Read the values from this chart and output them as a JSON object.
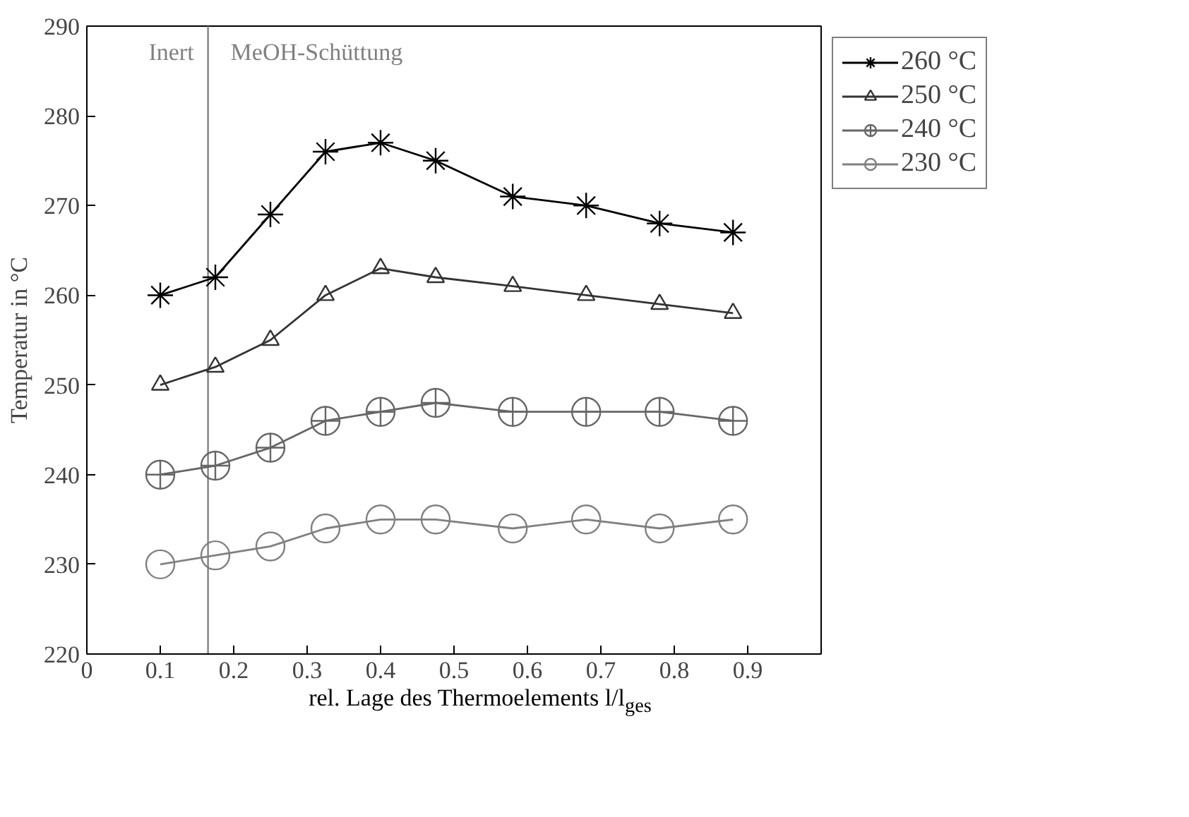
{
  "chart_data": {
    "type": "line",
    "xlabel": "rel. Lage des Thermoelements l/l$_{ges}$",
    "ylabel": "Temperatur in °C",
    "x": [
      0.1,
      0.175,
      0.25,
      0.325,
      0.4,
      0.475,
      0.58,
      0.68,
      0.78,
      0.88
    ],
    "series": [
      {
        "name": "260 °C",
        "color": "#000000",
        "marker": "cross",
        "values": [
          260,
          262,
          269,
          276,
          277,
          275,
          271,
          270,
          268,
          267
        ]
      },
      {
        "name": "250 °C",
        "color": "#333333",
        "marker": "triangle",
        "values": [
          250,
          252,
          255,
          260,
          263,
          262,
          261,
          260,
          259,
          258
        ]
      },
      {
        "name": "240 °C",
        "color": "#666666",
        "marker": "circle_cross",
        "values": [
          240,
          241,
          243,
          246,
          247,
          248,
          247,
          247,
          247,
          246
        ]
      },
      {
        "name": "230 °C",
        "color": "#808080",
        "marker": "circle",
        "values": [
          230,
          231,
          232,
          234,
          235,
          235,
          234,
          235,
          234,
          235
        ]
      }
    ],
    "xlim": [
      0,
      1
    ],
    "xticks": [
      0,
      0.1,
      0.2,
      0.3,
      0.4,
      0.5,
      0.6,
      0.7,
      0.8,
      0.9
    ],
    "ylim": [
      220,
      290
    ],
    "yticks": [
      220,
      230,
      240,
      250,
      260,
      270,
      280,
      290
    ],
    "ref_lines": [
      {
        "axis": "x",
        "value": 0.165,
        "color": "#808080"
      }
    ],
    "annotations": [
      "Inert",
      "MeOH-Schüttung"
    ],
    "legend": "top right",
    "grid": false,
    "line_style": "solid"
  }
}
